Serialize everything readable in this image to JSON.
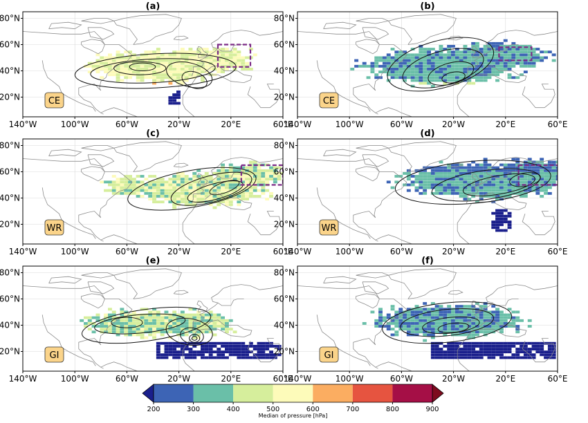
{
  "chart_data": {
    "type": "heatmap",
    "panels": [
      {
        "letter": "(a)",
        "regime": "CE"
      },
      {
        "letter": "(b)",
        "regime": "CE"
      },
      {
        "letter": "(c)",
        "regime": "WR"
      },
      {
        "letter": "(d)",
        "regime": "WR"
      },
      {
        "letter": "(e)",
        "regime": "GI"
      },
      {
        "letter": "(f)",
        "regime": "GI"
      }
    ],
    "x_ticks": [
      "140°W",
      "100°W",
      "60°W",
      "20°W",
      "20°E",
      "60°E"
    ],
    "y_ticks": [
      "80°N",
      "60°N",
      "40°N",
      "20°N"
    ],
    "x_range": [
      -140,
      60
    ],
    "y_range": [
      5,
      85
    ],
    "colorbar": {
      "label": "Median of pressure [hPa]",
      "ticks": [
        "200",
        "300",
        "400",
        "500",
        "600",
        "700",
        "800",
        "900"
      ],
      "colors": [
        "#3d64b5",
        "#6abfa8",
        "#d6ee9c",
        "#fdfbba",
        "#fbad61",
        "#e65440",
        "#a50f46"
      ],
      "under_color": "#1a1f8c",
      "over_color": "#7e0b1e"
    },
    "box_color": "#7b2a86"
  }
}
